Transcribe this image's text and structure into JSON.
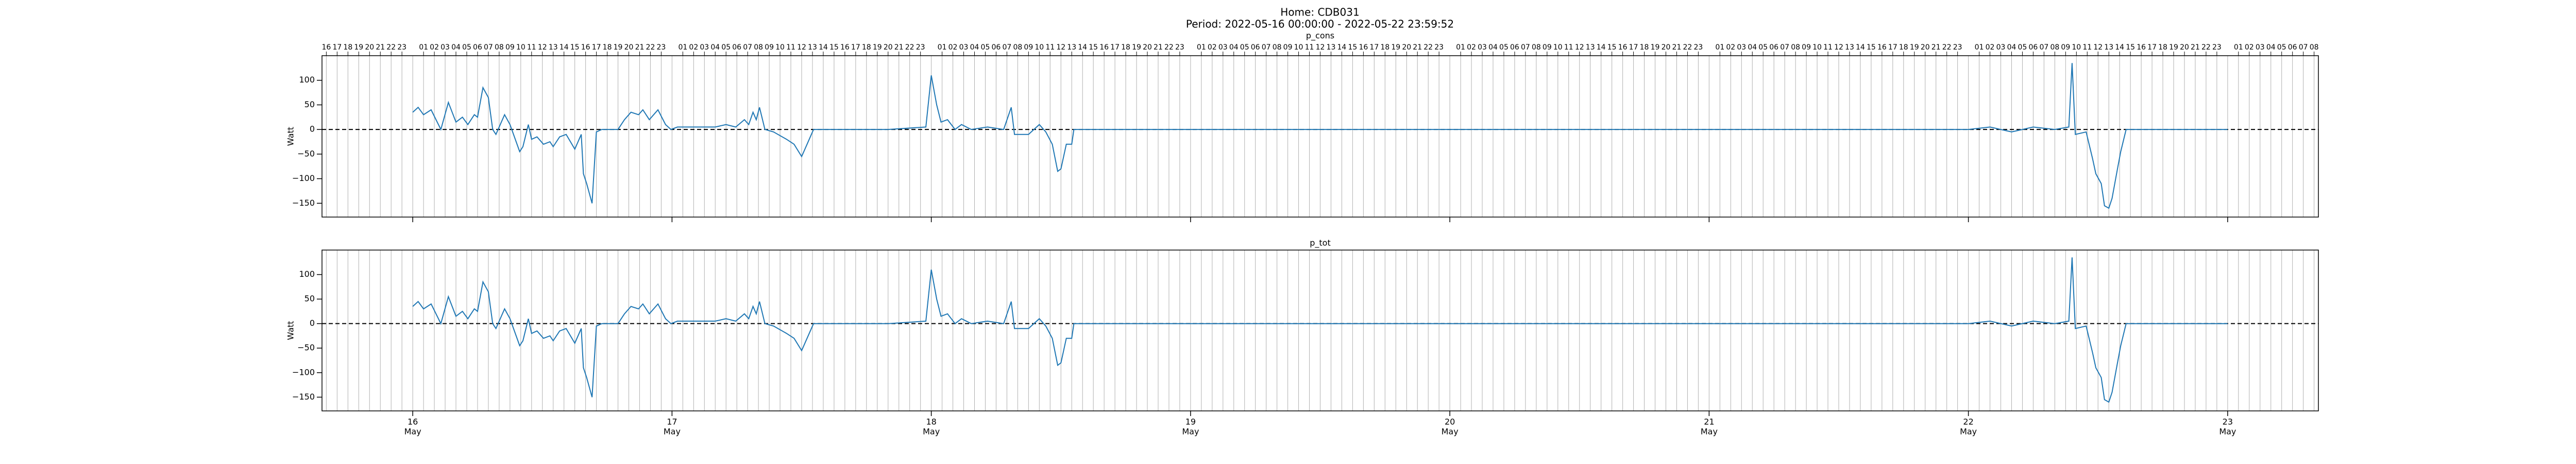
{
  "figure": {
    "title": "Home: CDB031",
    "subtitle": "Period: 2022-05-16 00:00:00 - 2022-05-22 23:59:52"
  },
  "chart_data": [
    {
      "type": "line",
      "title": "p_cons",
      "ylabel": "Watt",
      "color": "#1f77b4",
      "x": [
        0,
        0.5,
        1,
        1.7,
        2.6,
        3.3,
        4,
        4.6,
        5.1,
        5.7,
        6,
        6.5,
        7,
        7.4,
        7.7,
        8.5,
        9,
        9.9,
        10.2,
        10.7,
        11,
        11.5,
        12.1,
        12.7,
        13,
        13.6,
        14.2,
        15,
        15.6,
        15.8,
        16.1,
        16.6,
        17,
        17.5,
        19,
        19.6,
        20.2,
        20.9,
        21.3,
        21.9,
        22.7,
        23.4,
        23.9,
        24.5,
        26,
        28,
        29,
        29.9,
        30.7,
        31.1,
        31.5,
        31.8,
        32.1,
        32.6,
        33.4,
        34.6,
        35.3,
        36,
        36.5,
        37.1,
        40,
        44,
        47.5,
        48,
        48.5,
        48.9,
        49.5,
        50.2,
        50.8,
        51.7,
        53.2,
        54.7,
        55.4,
        55.7,
        57,
        58,
        58.6,
        59.2,
        59.7,
        60,
        60.5,
        61,
        61.2,
        72,
        96,
        120,
        144,
        146,
        148,
        150,
        152,
        153.3,
        153.6,
        153.9,
        154.9,
        155.5,
        155.8,
        156.3,
        156.6,
        157,
        157.3,
        157.8,
        158.1,
        158.6,
        167.99
      ],
      "values": [
        35,
        45,
        30,
        40,
        0,
        55,
        15,
        25,
        10,
        30,
        25,
        85,
        65,
        0,
        -10,
        30,
        10,
        -45,
        -35,
        10,
        -20,
        -15,
        -30,
        -25,
        -35,
        -15,
        -10,
        -40,
        -10,
        -90,
        -110,
        -150,
        -5,
        0,
        0,
        20,
        35,
        30,
        40,
        20,
        40,
        10,
        0,
        5,
        5,
        5,
        10,
        5,
        20,
        10,
        35,
        20,
        45,
        0,
        -5,
        -20,
        -30,
        -55,
        -30,
        0,
        0,
        0,
        5,
        110,
        50,
        15,
        20,
        0,
        10,
        0,
        5,
        0,
        45,
        -10,
        -10,
        10,
        -5,
        -30,
        -85,
        -80,
        -30,
        -30,
        0,
        0,
        0,
        0,
        0,
        5,
        -5,
        5,
        0,
        5,
        135,
        -10,
        -5,
        -60,
        -90,
        -110,
        -155,
        -160,
        -140,
        -80,
        -45,
        0,
        0
      ],
      "xlim": [
        -8.4,
        176.4
      ],
      "ylim": [
        -178,
        150
      ],
      "yticks": [
        {
          "value": -150,
          "label": "−150"
        },
        {
          "value": -100,
          "label": "−100"
        },
        {
          "value": -50,
          "label": "−50"
        },
        0,
        50,
        100
      ],
      "hlines": [
        0
      ],
      "hline_color": "#000000",
      "hline_style": "dashed",
      "grid_x": true,
      "x2ticks": [
        {
          "value": -8,
          "label": "16"
        },
        {
          "value": -7,
          "label": "17"
        },
        {
          "value": -6,
          "label": "18"
        },
        {
          "value": -5,
          "label": "19"
        },
        {
          "value": -4,
          "label": "20"
        },
        {
          "value": -3,
          "label": "21"
        },
        {
          "value": -2,
          "label": "22"
        },
        {
          "value": -1,
          "label": "23"
        },
        {
          "value": 1,
          "label": "01"
        },
        {
          "value": 2,
          "label": "02"
        },
        {
          "value": 3,
          "label": "03"
        },
        {
          "value": 4,
          "label": "04"
        },
        {
          "value": 5,
          "label": "05"
        },
        {
          "value": 6,
          "label": "06"
        },
        {
          "value": 7,
          "label": "07"
        },
        {
          "value": 8,
          "label": "08"
        },
        {
          "value": 9,
          "label": "09"
        },
        {
          "value": 10,
          "label": "10"
        },
        {
          "value": 11,
          "label": "11"
        },
        {
          "value": 12,
          "label": "12"
        },
        {
          "value": 13,
          "label": "13"
        },
        {
          "value": 14,
          "label": "14"
        },
        {
          "value": 15,
          "label": "15"
        },
        {
          "value": 16,
          "label": "16"
        },
        {
          "value": 17,
          "label": "17"
        },
        {
          "value": 18,
          "label": "18"
        },
        {
          "value": 19,
          "label": "19"
        },
        {
          "value": 20,
          "label": "20"
        },
        {
          "value": 21,
          "label": "21"
        },
        {
          "value": 22,
          "label": "22"
        },
        {
          "value": 23,
          "label": "23"
        },
        {
          "value": 25,
          "label": "01"
        },
        {
          "value": 26,
          "label": "02"
        },
        {
          "value": 27,
          "label": "03"
        },
        {
          "value": 28,
          "label": "04"
        },
        {
          "value": 29,
          "label": "05"
        },
        {
          "value": 30,
          "label": "06"
        },
        {
          "value": 31,
          "label": "07"
        },
        {
          "value": 32,
          "label": "08"
        },
        {
          "value": 33,
          "label": "09"
        },
        {
          "value": 34,
          "label": "10"
        },
        {
          "value": 35,
          "label": "11"
        },
        {
          "value": 36,
          "label": "12"
        },
        {
          "value": 37,
          "label": "13"
        },
        {
          "value": 38,
          "label": "14"
        },
        {
          "value": 39,
          "label": "15"
        },
        {
          "value": 40,
          "label": "16"
        },
        {
          "value": 41,
          "label": "17"
        },
        {
          "value": 42,
          "label": "18"
        },
        {
          "value": 43,
          "label": "19"
        },
        {
          "value": 44,
          "label": "20"
        },
        {
          "value": 45,
          "label": "21"
        },
        {
          "value": 46,
          "label": "22"
        },
        {
          "value": 47,
          "label": "23"
        },
        {
          "value": 49,
          "label": "01"
        },
        {
          "value": 50,
          "label": "02"
        },
        {
          "value": 51,
          "label": "03"
        },
        {
          "value": 52,
          "label": "04"
        },
        {
          "value": 53,
          "label": "05"
        },
        {
          "value": 54,
          "label": "06"
        },
        {
          "value": 55,
          "label": "07"
        },
        {
          "value": 56,
          "label": "08"
        },
        {
          "value": 57,
          "label": "09"
        },
        {
          "value": 58,
          "label": "10"
        },
        {
          "value": 59,
          "label": "11"
        },
        {
          "value": 60,
          "label": "12"
        },
        {
          "value": 61,
          "label": "13"
        },
        {
          "value": 62,
          "label": "14"
        },
        {
          "value": 63,
          "label": "15"
        },
        {
          "value": 64,
          "label": "16"
        },
        {
          "value": 65,
          "label": "17"
        },
        {
          "value": 66,
          "label": "18"
        },
        {
          "value": 67,
          "label": "19"
        },
        {
          "value": 68,
          "label": "20"
        },
        {
          "value": 69,
          "label": "21"
        },
        {
          "value": 70,
          "label": "22"
        },
        {
          "value": 71,
          "label": "23"
        },
        {
          "value": 73,
          "label": "01"
        },
        {
          "value": 74,
          "label": "02"
        },
        {
          "value": 75,
          "label": "03"
        },
        {
          "value": 76,
          "label": "04"
        },
        {
          "value": 77,
          "label": "05"
        },
        {
          "value": 78,
          "label": "06"
        },
        {
          "value": 79,
          "label": "07"
        },
        {
          "value": 80,
          "label": "08"
        },
        {
          "value": 81,
          "label": "09"
        },
        {
          "value": 82,
          "label": "10"
        },
        {
          "value": 83,
          "label": "11"
        },
        {
          "value": 84,
          "label": "12"
        },
        {
          "value": 85,
          "label": "13"
        },
        {
          "value": 86,
          "label": "14"
        },
        {
          "value": 87,
          "label": "15"
        },
        {
          "value": 88,
          "label": "16"
        },
        {
          "value": 89,
          "label": "17"
        },
        {
          "value": 90,
          "label": "18"
        },
        {
          "value": 91,
          "label": "19"
        },
        {
          "value": 92,
          "label": "20"
        },
        {
          "value": 93,
          "label": "21"
        },
        {
          "value": 94,
          "label": "22"
        },
        {
          "value": 95,
          "label": "23"
        },
        {
          "value": 97,
          "label": "01"
        },
        {
          "value": 98,
          "label": "02"
        },
        {
          "value": 99,
          "label": "03"
        },
        {
          "value": 100,
          "label": "04"
        },
        {
          "value": 101,
          "label": "05"
        },
        {
          "value": 102,
          "label": "06"
        },
        {
          "value": 103,
          "label": "07"
        },
        {
          "value": 104,
          "label": "08"
        },
        {
          "value": 105,
          "label": "09"
        },
        {
          "value": 106,
          "label": "10"
        },
        {
          "value": 107,
          "label": "11"
        },
        {
          "value": 108,
          "label": "12"
        },
        {
          "value": 109,
          "label": "13"
        },
        {
          "value": 110,
          "label": "14"
        },
        {
          "value": 111,
          "label": "15"
        },
        {
          "value": 112,
          "label": "16"
        },
        {
          "value": 113,
          "label": "17"
        },
        {
          "value": 114,
          "label": "18"
        },
        {
          "value": 115,
          "label": "19"
        },
        {
          "value": 116,
          "label": "20"
        },
        {
          "value": 117,
          "label": "21"
        },
        {
          "value": 118,
          "label": "22"
        },
        {
          "value": 119,
          "label": "23"
        },
        {
          "value": 121,
          "label": "01"
        },
        {
          "value": 122,
          "label": "02"
        },
        {
          "value": 123,
          "label": "03"
        },
        {
          "value": 124,
          "label": "04"
        },
        {
          "value": 125,
          "label": "05"
        },
        {
          "value": 126,
          "label": "06"
        },
        {
          "value": 127,
          "label": "07"
        },
        {
          "value": 128,
          "label": "08"
        },
        {
          "value": 129,
          "label": "09"
        },
        {
          "value": 130,
          "label": "10"
        },
        {
          "value": 131,
          "label": "11"
        },
        {
          "value": 132,
          "label": "12"
        },
        {
          "value": 133,
          "label": "13"
        },
        {
          "value": 134,
          "label": "14"
        },
        {
          "value": 135,
          "label": "15"
        },
        {
          "value": 136,
          "label": "16"
        },
        {
          "value": 137,
          "label": "17"
        },
        {
          "value": 138,
          "label": "18"
        },
        {
          "value": 139,
          "label": "19"
        },
        {
          "value": 140,
          "label": "20"
        },
        {
          "value": 141,
          "label": "21"
        },
        {
          "value": 142,
          "label": "22"
        },
        {
          "value": 143,
          "label": "23"
        },
        {
          "value": 145,
          "label": "01"
        },
        {
          "value": 146,
          "label": "02"
        },
        {
          "value": 147,
          "label": "03"
        },
        {
          "value": 148,
          "label": "04"
        },
        {
          "value": 149,
          "label": "05"
        },
        {
          "value": 150,
          "label": "06"
        },
        {
          "value": 151,
          "label": "07"
        },
        {
          "value": 152,
          "label": "08"
        },
        {
          "value": 153,
          "label": "09"
        },
        {
          "value": 154,
          "label": "10"
        },
        {
          "value": 155,
          "label": "11"
        },
        {
          "value": 156,
          "label": "12"
        },
        {
          "value": 157,
          "label": "13"
        },
        {
          "value": 158,
          "label": "14"
        },
        {
          "value": 159,
          "label": "15"
        },
        {
          "value": 160,
          "label": "16"
        },
        {
          "value": 161,
          "label": "17"
        },
        {
          "value": 162,
          "label": "18"
        },
        {
          "value": 163,
          "label": "19"
        },
        {
          "value": 164,
          "label": "20"
        },
        {
          "value": 165,
          "label": "21"
        },
        {
          "value": 166,
          "label": "22"
        },
        {
          "value": 167,
          "label": "23"
        },
        {
          "value": 169,
          "label": "01"
        },
        {
          "value": 170,
          "label": "02"
        },
        {
          "value": 171,
          "label": "03"
        },
        {
          "value": 172,
          "label": "04"
        },
        {
          "value": 173,
          "label": "05"
        },
        {
          "value": 174,
          "label": "06"
        },
        {
          "value": 175,
          "label": "07"
        },
        {
          "value": 176,
          "label": "08"
        }
      ]
    },
    {
      "type": "line",
      "title": "p_tot",
      "ylabel": "Watt",
      "color": "#1f77b4",
      "x": [
        0,
        0.5,
        1,
        1.7,
        2.6,
        3.3,
        4,
        4.6,
        5.1,
        5.7,
        6,
        6.5,
        7,
        7.4,
        7.7,
        8.5,
        9,
        9.9,
        10.2,
        10.7,
        11,
        11.5,
        12.1,
        12.7,
        13,
        13.6,
        14.2,
        15,
        15.6,
        15.8,
        16.1,
        16.6,
        17,
        17.5,
        19,
        19.6,
        20.2,
        20.9,
        21.3,
        21.9,
        22.7,
        23.4,
        23.9,
        24.5,
        26,
        28,
        29,
        29.9,
        30.7,
        31.1,
        31.5,
        31.8,
        32.1,
        32.6,
        33.4,
        34.6,
        35.3,
        36,
        36.5,
        37.1,
        40,
        44,
        47.5,
        48,
        48.5,
        48.9,
        49.5,
        50.2,
        50.8,
        51.7,
        53.2,
        54.7,
        55.4,
        55.7,
        57,
        58,
        58.6,
        59.2,
        59.7,
        60,
        60.5,
        61,
        61.2,
        72,
        96,
        120,
        144,
        146,
        148,
        150,
        152,
        153.3,
        153.6,
        153.9,
        154.9,
        155.5,
        155.8,
        156.3,
        156.6,
        157,
        157.3,
        157.8,
        158.1,
        158.6,
        167.99
      ],
      "values": [
        35,
        45,
        30,
        40,
        0,
        55,
        15,
        25,
        10,
        30,
        25,
        85,
        65,
        0,
        -10,
        30,
        10,
        -45,
        -35,
        10,
        -20,
        -15,
        -30,
        -25,
        -35,
        -15,
        -10,
        -40,
        -10,
        -90,
        -110,
        -150,
        -5,
        0,
        0,
        20,
        35,
        30,
        40,
        20,
        40,
        10,
        0,
        5,
        5,
        5,
        10,
        5,
        20,
        10,
        35,
        20,
        45,
        0,
        -5,
        -20,
        -30,
        -55,
        -30,
        0,
        0,
        0,
        5,
        110,
        50,
        15,
        20,
        0,
        10,
        0,
        5,
        0,
        45,
        -10,
        -10,
        10,
        -5,
        -30,
        -85,
        -80,
        -30,
        -30,
        0,
        0,
        0,
        0,
        0,
        5,
        -5,
        5,
        0,
        5,
        135,
        -10,
        -5,
        -60,
        -90,
        -110,
        -155,
        -160,
        -140,
        -80,
        -45,
        0,
        0
      ],
      "xlim": [
        -8.4,
        176.4
      ],
      "ylim": [
        -178,
        150
      ],
      "yticks": [
        {
          "value": -150,
          "label": "−150"
        },
        {
          "value": -100,
          "label": "−100"
        },
        {
          "value": -50,
          "label": "−50"
        },
        0,
        50,
        100
      ],
      "hlines": [
        0
      ],
      "hline_color": "#000000",
      "hline_style": "dashed",
      "grid_x": true,
      "xticks": [
        {
          "value": 0,
          "label": "16",
          "month": "May"
        },
        {
          "value": 24,
          "label": "17",
          "month": "May"
        },
        {
          "value": 48,
          "label": "18",
          "month": "May"
        },
        {
          "value": 72,
          "label": "19",
          "month": "May"
        },
        {
          "value": 96,
          "label": "20",
          "month": "May"
        },
        {
          "value": 120,
          "label": "21",
          "month": "May"
        },
        {
          "value": 144,
          "label": "22",
          "month": "May"
        },
        {
          "value": 168,
          "label": "23",
          "month": "May"
        }
      ]
    }
  ]
}
